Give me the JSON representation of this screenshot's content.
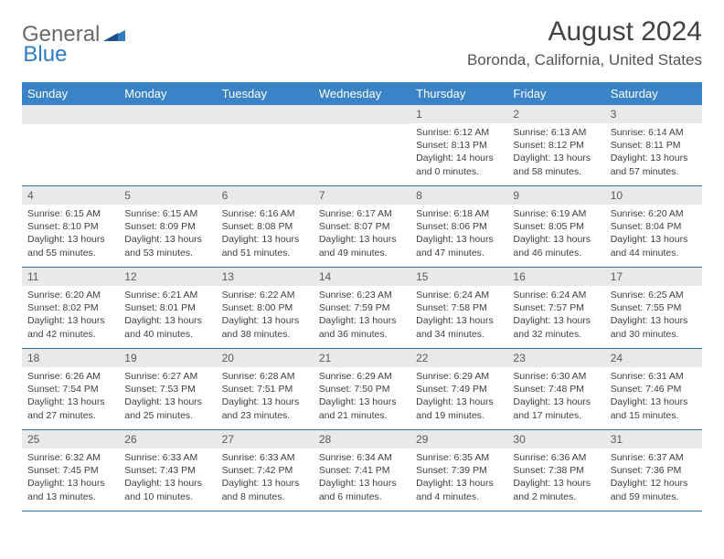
{
  "logo": {
    "text1": "General",
    "text2": "Blue"
  },
  "title": "August 2024",
  "location": "Boronda, California, United States",
  "colors": {
    "header_bg": "#3983c6",
    "header_text": "#ffffff",
    "daynum_bg": "#e9e9e9",
    "daynum_text": "#5a5a5a",
    "body_text": "#3f3f3f",
    "row_border": "#2f6fa8",
    "logo_gray": "#6a6a6a",
    "logo_blue": "#2f7bc4"
  },
  "day_headers": [
    "Sunday",
    "Monday",
    "Tuesday",
    "Wednesday",
    "Thursday",
    "Friday",
    "Saturday"
  ],
  "weeks": [
    [
      null,
      null,
      null,
      null,
      {
        "n": "1",
        "sr": "Sunrise: 6:12 AM",
        "ss": "Sunset: 8:13 PM",
        "dl": "Daylight: 14 hours and 0 minutes."
      },
      {
        "n": "2",
        "sr": "Sunrise: 6:13 AM",
        "ss": "Sunset: 8:12 PM",
        "dl": "Daylight: 13 hours and 58 minutes."
      },
      {
        "n": "3",
        "sr": "Sunrise: 6:14 AM",
        "ss": "Sunset: 8:11 PM",
        "dl": "Daylight: 13 hours and 57 minutes."
      }
    ],
    [
      {
        "n": "4",
        "sr": "Sunrise: 6:15 AM",
        "ss": "Sunset: 8:10 PM",
        "dl": "Daylight: 13 hours and 55 minutes."
      },
      {
        "n": "5",
        "sr": "Sunrise: 6:15 AM",
        "ss": "Sunset: 8:09 PM",
        "dl": "Daylight: 13 hours and 53 minutes."
      },
      {
        "n": "6",
        "sr": "Sunrise: 6:16 AM",
        "ss": "Sunset: 8:08 PM",
        "dl": "Daylight: 13 hours and 51 minutes."
      },
      {
        "n": "7",
        "sr": "Sunrise: 6:17 AM",
        "ss": "Sunset: 8:07 PM",
        "dl": "Daylight: 13 hours and 49 minutes."
      },
      {
        "n": "8",
        "sr": "Sunrise: 6:18 AM",
        "ss": "Sunset: 8:06 PM",
        "dl": "Daylight: 13 hours and 47 minutes."
      },
      {
        "n": "9",
        "sr": "Sunrise: 6:19 AM",
        "ss": "Sunset: 8:05 PM",
        "dl": "Daylight: 13 hours and 46 minutes."
      },
      {
        "n": "10",
        "sr": "Sunrise: 6:20 AM",
        "ss": "Sunset: 8:04 PM",
        "dl": "Daylight: 13 hours and 44 minutes."
      }
    ],
    [
      {
        "n": "11",
        "sr": "Sunrise: 6:20 AM",
        "ss": "Sunset: 8:02 PM",
        "dl": "Daylight: 13 hours and 42 minutes."
      },
      {
        "n": "12",
        "sr": "Sunrise: 6:21 AM",
        "ss": "Sunset: 8:01 PM",
        "dl": "Daylight: 13 hours and 40 minutes."
      },
      {
        "n": "13",
        "sr": "Sunrise: 6:22 AM",
        "ss": "Sunset: 8:00 PM",
        "dl": "Daylight: 13 hours and 38 minutes."
      },
      {
        "n": "14",
        "sr": "Sunrise: 6:23 AM",
        "ss": "Sunset: 7:59 PM",
        "dl": "Daylight: 13 hours and 36 minutes."
      },
      {
        "n": "15",
        "sr": "Sunrise: 6:24 AM",
        "ss": "Sunset: 7:58 PM",
        "dl": "Daylight: 13 hours and 34 minutes."
      },
      {
        "n": "16",
        "sr": "Sunrise: 6:24 AM",
        "ss": "Sunset: 7:57 PM",
        "dl": "Daylight: 13 hours and 32 minutes."
      },
      {
        "n": "17",
        "sr": "Sunrise: 6:25 AM",
        "ss": "Sunset: 7:55 PM",
        "dl": "Daylight: 13 hours and 30 minutes."
      }
    ],
    [
      {
        "n": "18",
        "sr": "Sunrise: 6:26 AM",
        "ss": "Sunset: 7:54 PM",
        "dl": "Daylight: 13 hours and 27 minutes."
      },
      {
        "n": "19",
        "sr": "Sunrise: 6:27 AM",
        "ss": "Sunset: 7:53 PM",
        "dl": "Daylight: 13 hours and 25 minutes."
      },
      {
        "n": "20",
        "sr": "Sunrise: 6:28 AM",
        "ss": "Sunset: 7:51 PM",
        "dl": "Daylight: 13 hours and 23 minutes."
      },
      {
        "n": "21",
        "sr": "Sunrise: 6:29 AM",
        "ss": "Sunset: 7:50 PM",
        "dl": "Daylight: 13 hours and 21 minutes."
      },
      {
        "n": "22",
        "sr": "Sunrise: 6:29 AM",
        "ss": "Sunset: 7:49 PM",
        "dl": "Daylight: 13 hours and 19 minutes."
      },
      {
        "n": "23",
        "sr": "Sunrise: 6:30 AM",
        "ss": "Sunset: 7:48 PM",
        "dl": "Daylight: 13 hours and 17 minutes."
      },
      {
        "n": "24",
        "sr": "Sunrise: 6:31 AM",
        "ss": "Sunset: 7:46 PM",
        "dl": "Daylight: 13 hours and 15 minutes."
      }
    ],
    [
      {
        "n": "25",
        "sr": "Sunrise: 6:32 AM",
        "ss": "Sunset: 7:45 PM",
        "dl": "Daylight: 13 hours and 13 minutes."
      },
      {
        "n": "26",
        "sr": "Sunrise: 6:33 AM",
        "ss": "Sunset: 7:43 PM",
        "dl": "Daylight: 13 hours and 10 minutes."
      },
      {
        "n": "27",
        "sr": "Sunrise: 6:33 AM",
        "ss": "Sunset: 7:42 PM",
        "dl": "Daylight: 13 hours and 8 minutes."
      },
      {
        "n": "28",
        "sr": "Sunrise: 6:34 AM",
        "ss": "Sunset: 7:41 PM",
        "dl": "Daylight: 13 hours and 6 minutes."
      },
      {
        "n": "29",
        "sr": "Sunrise: 6:35 AM",
        "ss": "Sunset: 7:39 PM",
        "dl": "Daylight: 13 hours and 4 minutes."
      },
      {
        "n": "30",
        "sr": "Sunrise: 6:36 AM",
        "ss": "Sunset: 7:38 PM",
        "dl": "Daylight: 13 hours and 2 minutes."
      },
      {
        "n": "31",
        "sr": "Sunrise: 6:37 AM",
        "ss": "Sunset: 7:36 PM",
        "dl": "Daylight: 12 hours and 59 minutes."
      }
    ]
  ]
}
